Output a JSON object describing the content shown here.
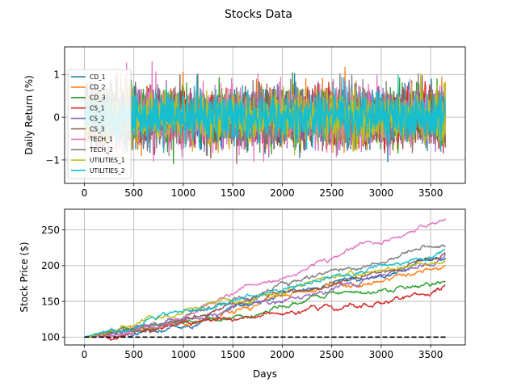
{
  "figure": {
    "title": "Stocks Data"
  },
  "chart_data": [
    {
      "type": "line",
      "subtype": "noisy-returns",
      "title": "",
      "xlabel": "",
      "ylabel": "Daily Return (%)",
      "xlim": [
        -200,
        3850
      ],
      "ylim": [
        -1.55,
        1.65
      ],
      "xticks": [
        0,
        500,
        1000,
        1500,
        2000,
        2500,
        3000,
        3500
      ],
      "yticks": [
        -1,
        0,
        1
      ],
      "grid": true,
      "legend_position": "left",
      "num_points": 3650,
      "approx_range": [
        -1.4,
        1.5
      ],
      "series": [
        {
          "name": "CD_1",
          "color": "#1f77b4",
          "std": 0.32
        },
        {
          "name": "CD_2",
          "color": "#ff7f0e",
          "std": 0.32
        },
        {
          "name": "CD_3",
          "color": "#2ca02c",
          "std": 0.32
        },
        {
          "name": "CS_1",
          "color": "#d62728",
          "std": 0.3
        },
        {
          "name": "CS_2",
          "color": "#9467bd",
          "std": 0.3
        },
        {
          "name": "CS_3",
          "color": "#8c564b",
          "std": 0.3
        },
        {
          "name": "TECH_1",
          "color": "#e377c2",
          "std": 0.36
        },
        {
          "name": "TECH_2",
          "color": "#7f7f7f",
          "std": 0.34
        },
        {
          "name": "UTILITIES_1",
          "color": "#bcbd22",
          "std": 0.3
        },
        {
          "name": "UTILITIES_2",
          "color": "#17becf",
          "std": 0.27
        }
      ]
    },
    {
      "type": "line",
      "title": "",
      "xlabel": "Days",
      "ylabel": "Stock Price ($)",
      "xlim": [
        -200,
        3850
      ],
      "ylim": [
        89,
        279
      ],
      "xticks": [
        0,
        500,
        1000,
        1500,
        2000,
        2500,
        3000,
        3500
      ],
      "yticks": [
        100,
        150,
        200,
        250
      ],
      "grid": true,
      "baseline": {
        "y": 100,
        "style": "dashed",
        "color": "#000000"
      },
      "series": [
        {
          "name": "CD_1",
          "color": "#1f77b4",
          "x": [
            0,
            500,
            1000,
            1500,
            2000,
            2500,
            3000,
            3500,
            3650
          ],
          "y": [
            100,
            105,
            112,
            140,
            158,
            168,
            188,
            208,
            213
          ]
        },
        {
          "name": "CD_2",
          "color": "#ff7f0e",
          "x": [
            0,
            500,
            1000,
            1500,
            2000,
            2500,
            3000,
            3500,
            3650
          ],
          "y": [
            100,
            110,
            118,
            138,
            155,
            172,
            178,
            195,
            200
          ]
        },
        {
          "name": "CD_3",
          "color": "#2ca02c",
          "x": [
            0,
            500,
            1000,
            1500,
            2000,
            2500,
            3000,
            3500,
            3650
          ],
          "y": [
            100,
            108,
            120,
            128,
            140,
            158,
            165,
            175,
            181
          ]
        },
        {
          "name": "CS_1",
          "color": "#d62728",
          "x": [
            0,
            500,
            1000,
            1500,
            2000,
            2500,
            3000,
            3500,
            3650
          ],
          "y": [
            100,
            104,
            118,
            125,
            133,
            140,
            144,
            155,
            165
          ]
        },
        {
          "name": "CS_2",
          "color": "#9467bd",
          "x": [
            0,
            500,
            1000,
            1500,
            2000,
            2500,
            3000,
            3500,
            3650
          ],
          "y": [
            100,
            110,
            128,
            140,
            150,
            168,
            185,
            205,
            213
          ]
        },
        {
          "name": "CS_3",
          "color": "#8c564b",
          "x": [
            0,
            500,
            1000,
            1500,
            2000,
            2500,
            3000,
            3500,
            3650
          ],
          "y": [
            100,
            108,
            125,
            145,
            158,
            175,
            190,
            208,
            215
          ]
        },
        {
          "name": "TECH_1",
          "color": "#e377c2",
          "x": [
            0,
            500,
            1000,
            1500,
            2000,
            2500,
            3000,
            3500,
            3650
          ],
          "y": [
            100,
            110,
            125,
            163,
            180,
            212,
            232,
            258,
            265
          ]
        },
        {
          "name": "TECH_2",
          "color": "#7f7f7f",
          "x": [
            0,
            500,
            1000,
            1500,
            2000,
            2500,
            3000,
            3500,
            3650
          ],
          "y": [
            100,
            108,
            122,
            150,
            172,
            193,
            205,
            228,
            234
          ]
        },
        {
          "name": "UTILITIES_1",
          "color": "#bcbd22",
          "x": [
            0,
            500,
            1000,
            1500,
            2000,
            2500,
            3000,
            3500,
            3650
          ],
          "y": [
            100,
            113,
            135,
            150,
            162,
            180,
            193,
            205,
            210
          ]
        },
        {
          "name": "UTILITIES_2",
          "color": "#17becf",
          "x": [
            0,
            500,
            1000,
            1500,
            2000,
            2500,
            3000,
            3500,
            3650
          ],
          "y": [
            100,
            116,
            138,
            150,
            165,
            185,
            200,
            215,
            225
          ]
        }
      ]
    }
  ]
}
